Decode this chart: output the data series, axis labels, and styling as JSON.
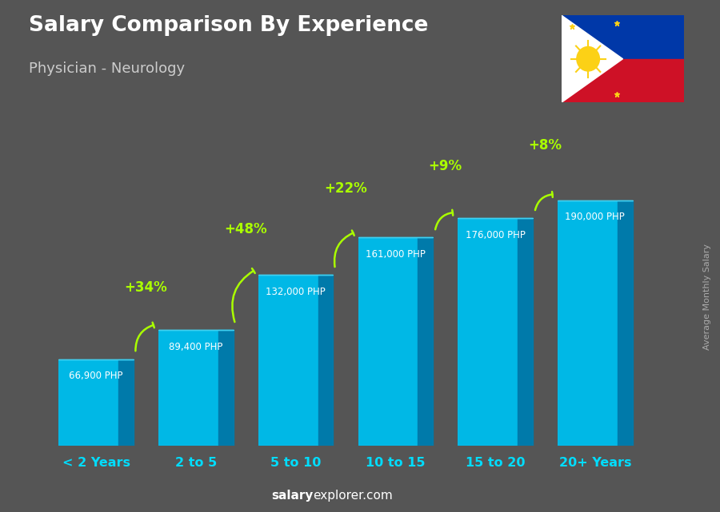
{
  "title": "Salary Comparison By Experience",
  "subtitle": "Physician - Neurology",
  "categories": [
    "< 2 Years",
    "2 to 5",
    "5 to 10",
    "10 to 15",
    "15 to 20",
    "20+ Years"
  ],
  "values": [
    66900,
    89400,
    132000,
    161000,
    176000,
    190000
  ],
  "salary_labels": [
    "66,900 PHP",
    "89,400 PHP",
    "132,000 PHP",
    "161,000 PHP",
    "176,000 PHP",
    "190,000 PHP"
  ],
  "pct_changes": [
    "+34%",
    "+48%",
    "+22%",
    "+9%",
    "+8%"
  ],
  "bar_color_face": "#00b8e6",
  "bar_color_side": "#007aaa",
  "bar_color_top": "#40d0f0",
  "bg_color": "#555555",
  "title_color": "#ffffff",
  "subtitle_color": "#cccccc",
  "label_color": "#ffffff",
  "xlabel_color": "#00ddff",
  "pct_color": "#aaff00",
  "ylabel_text": "Average Monthly Salary",
  "ylim": [
    0,
    230000
  ],
  "bar_width": 0.6,
  "bar_depth": 0.15
}
